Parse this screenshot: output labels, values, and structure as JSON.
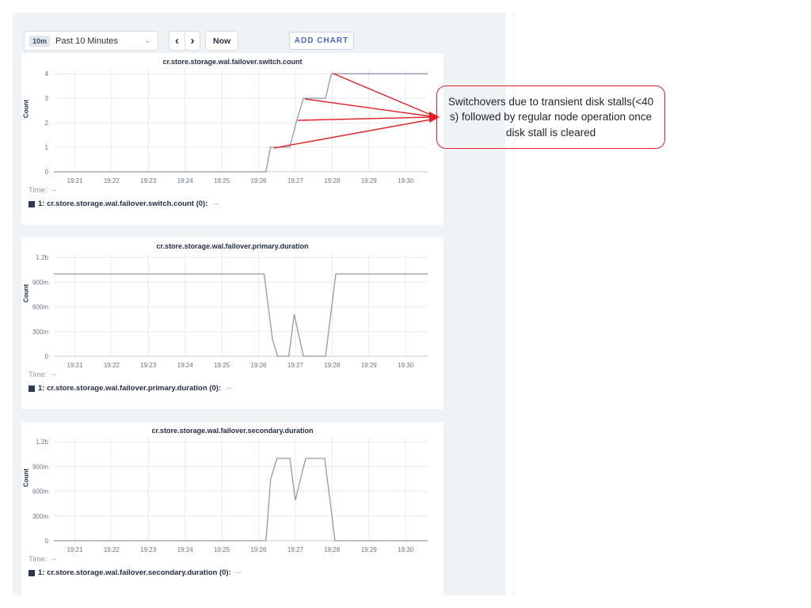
{
  "toolbar": {
    "range_badge": "10m",
    "range_label": "Past 10 Minutes",
    "caret": "⌄",
    "prev_label": "‹",
    "next_label": "›",
    "now_label": "Now",
    "add_chart_label": "ADD CHART"
  },
  "annotation": {
    "text": "Switchovers due to transient disk stalls(<40 s) followed by regular node operation once disk stall is cleared",
    "color": "#e01f26",
    "arrows": [
      [
        421,
        93,
        544,
        145
      ],
      [
        385,
        125,
        544,
        147
      ],
      [
        376,
        152,
        544,
        148
      ],
      [
        346,
        187,
        544,
        151
      ]
    ],
    "arrowhead": "542,141 555,148 542,155"
  },
  "colors": {
    "series_line": "#9099ab",
    "legend_swatch": "#2c3a52",
    "grid": "#e7eaee",
    "baseline": "#c6cbd3",
    "accent_blue": "#4565d9",
    "annotation_red": "#e01f26",
    "panel_bg": "#eff3f6"
  },
  "charts": [
    {
      "title": "cr.store.storage.wal.failover.switch.count",
      "ylabel": "Count",
      "legend": {
        "time_label": "Time:",
        "time_value": "--",
        "series_label": "1: cr.store.storage.wal.failover.switch.count (0):",
        "series_value": "--"
      },
      "chart_data": {
        "type": "line",
        "title": "cr.store.storage.wal.failover.switch.count",
        "ylabel": "Count",
        "x_domain": [
          20.43,
          30.6
        ],
        "y_domain": [
          0,
          4.2
        ],
        "x_ticks": [
          [
            21,
            "19:21"
          ],
          [
            22,
            "19:22"
          ],
          [
            23,
            "19:23"
          ],
          [
            24,
            "19:24"
          ],
          [
            25,
            "19:25"
          ],
          [
            26,
            "19:26"
          ],
          [
            27,
            "19:27"
          ],
          [
            28,
            "19:28"
          ],
          [
            29,
            "19:29"
          ],
          [
            30,
            "19:30"
          ]
        ],
        "y_ticks": [
          [
            0,
            "0"
          ],
          [
            1,
            "1"
          ],
          [
            2,
            "2"
          ],
          [
            3,
            "3"
          ],
          [
            4,
            "4"
          ]
        ],
        "points": [
          [
            20.43,
            0
          ],
          [
            26.2,
            0
          ],
          [
            26.32,
            1
          ],
          [
            26.85,
            1
          ],
          [
            27.02,
            2
          ],
          [
            27.22,
            3
          ],
          [
            27.82,
            3
          ],
          [
            27.98,
            4
          ],
          [
            30.6,
            4
          ]
        ]
      }
    },
    {
      "title": "cr.store.storage.wal.failover.primary.duration",
      "ylabel": "Count",
      "legend": {
        "time_label": "Time:",
        "time_value": "--",
        "series_label": "1: cr.store.storage.wal.failover.primary.duration (0):",
        "series_value": "--"
      },
      "chart_data": {
        "type": "line",
        "title": "cr.store.storage.wal.failover.primary.duration",
        "ylabel": "Count",
        "x_domain": [
          20.43,
          30.6
        ],
        "y_domain": [
          0,
          1.25
        ],
        "x_ticks": [
          [
            21,
            "19:21"
          ],
          [
            22,
            "19:22"
          ],
          [
            23,
            "19:23"
          ],
          [
            24,
            "19:24"
          ],
          [
            25,
            "19:25"
          ],
          [
            26,
            "19:26"
          ],
          [
            27,
            "19:27"
          ],
          [
            28,
            "19:28"
          ],
          [
            29,
            "19:29"
          ],
          [
            30,
            "19:30"
          ]
        ],
        "y_ticks": [
          [
            0,
            "0"
          ],
          [
            0.3,
            "300m"
          ],
          [
            0.6,
            "600m"
          ],
          [
            0.9,
            "900m"
          ],
          [
            1.2,
            "1.2b"
          ]
        ],
        "points": [
          [
            20.43,
            1.0
          ],
          [
            26.15,
            1.0
          ],
          [
            26.38,
            0.2
          ],
          [
            26.52,
            0
          ],
          [
            26.82,
            0
          ],
          [
            26.97,
            0.51
          ],
          [
            27.22,
            0
          ],
          [
            27.82,
            0
          ],
          [
            28.1,
            1.0
          ],
          [
            30.6,
            1.0
          ]
        ]
      }
    },
    {
      "title": "cr.store.storage.wal.failover.secondary.duration",
      "ylabel": "Count",
      "legend": {
        "time_label": "Time:",
        "time_value": "--",
        "series_label": "1: cr.store.storage.wal.failover.secondary.duration (0):",
        "series_value": "--"
      },
      "chart_data": {
        "type": "line",
        "title": "cr.store.storage.wal.failover.secondary.duration",
        "ylabel": "Count",
        "x_domain": [
          20.43,
          30.6
        ],
        "y_domain": [
          0,
          1.25
        ],
        "x_ticks": [
          [
            21,
            "19:21"
          ],
          [
            22,
            "19:22"
          ],
          [
            23,
            "19:23"
          ],
          [
            24,
            "19:24"
          ],
          [
            25,
            "19:25"
          ],
          [
            26,
            "19:26"
          ],
          [
            27,
            "19:27"
          ],
          [
            28,
            "19:28"
          ],
          [
            29,
            "19:29"
          ],
          [
            30,
            "19:30"
          ]
        ],
        "y_ticks": [
          [
            0,
            "0"
          ],
          [
            0.3,
            "300m"
          ],
          [
            0.6,
            "600m"
          ],
          [
            0.9,
            "900m"
          ],
          [
            1.2,
            "1.2b"
          ]
        ],
        "points": [
          [
            20.43,
            0
          ],
          [
            26.2,
            0
          ],
          [
            26.33,
            0.75
          ],
          [
            26.5,
            1.0
          ],
          [
            26.85,
            1.0
          ],
          [
            27.0,
            0.49
          ],
          [
            27.28,
            1.0
          ],
          [
            27.8,
            1.0
          ],
          [
            28.08,
            0
          ],
          [
            30.6,
            0
          ]
        ]
      }
    }
  ]
}
